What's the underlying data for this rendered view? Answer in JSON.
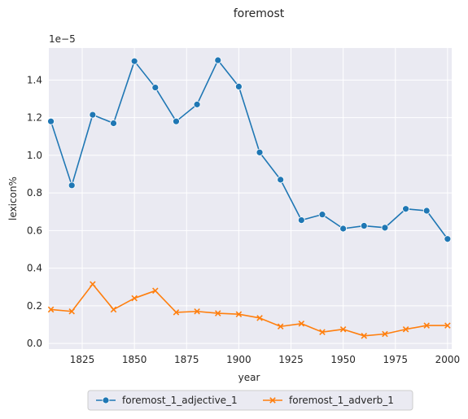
{
  "chart_data": {
    "type": "line",
    "title": "foremost",
    "xlabel": "year",
    "ylabel": "lexicon%",
    "y_scale_label": "1e−5",
    "x": [
      1810,
      1820,
      1830,
      1840,
      1850,
      1860,
      1870,
      1880,
      1890,
      1900,
      1910,
      1920,
      1930,
      1940,
      1950,
      1960,
      1970,
      1980,
      1990,
      2000
    ],
    "xlim": [
      1809,
      2002
    ],
    "ylim": [
      -0.03,
      1.57
    ],
    "x_ticks": [
      1825,
      1850,
      1875,
      1900,
      1925,
      1950,
      1975,
      2000
    ],
    "x_tick_labels": [
      "1825",
      "1850",
      "1875",
      "1900",
      "1925",
      "1950",
      "1975",
      "2000"
    ],
    "y_ticks": [
      0.0,
      0.2,
      0.4,
      0.6,
      0.8,
      1.0,
      1.2,
      1.4
    ],
    "y_tick_labels": [
      "0.0",
      "0.2",
      "0.4",
      "0.6",
      "0.8",
      "1.0",
      "1.2",
      "1.4"
    ],
    "grid": true,
    "legend_position": "bottom-center",
    "series": [
      {
        "name": "foremost_1_adjective_1",
        "color": "#1f77b4",
        "marker": "circle",
        "values": [
          1.18,
          0.84,
          1.215,
          1.17,
          1.5,
          1.36,
          1.18,
          1.27,
          1.505,
          1.365,
          1.015,
          0.87,
          0.655,
          0.685,
          0.61,
          0.625,
          0.615,
          0.715,
          0.705,
          0.555
        ]
      },
      {
        "name": "foremost_1_adverb_1",
        "color": "#ff7f0e",
        "marker": "x",
        "values": [
          0.18,
          0.17,
          0.315,
          0.18,
          0.24,
          0.28,
          0.165,
          0.17,
          0.16,
          0.155,
          0.135,
          0.09,
          0.105,
          0.06,
          0.075,
          0.04,
          0.05,
          0.075,
          0.095,
          0.095
        ]
      }
    ]
  }
}
